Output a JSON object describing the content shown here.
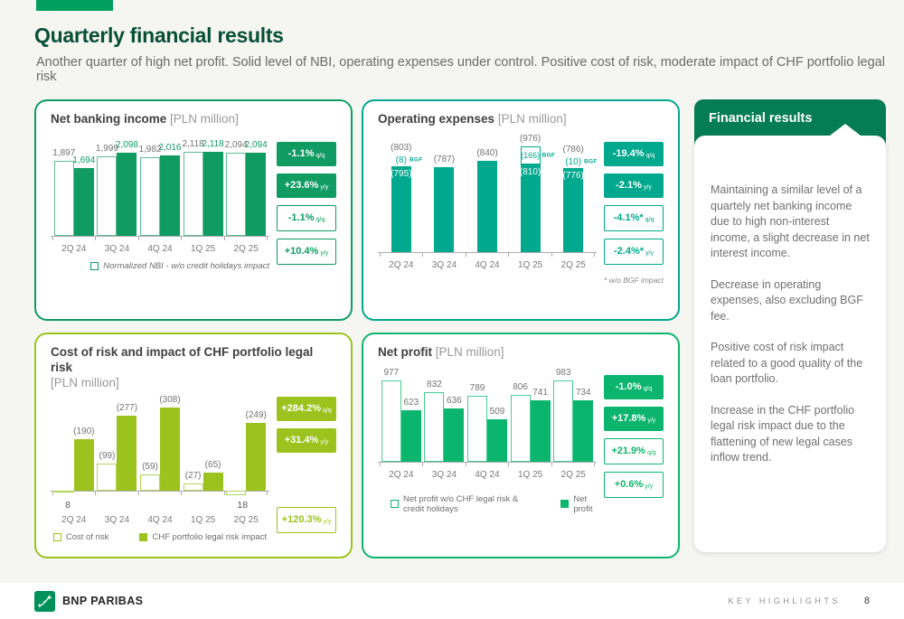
{
  "page": {
    "title": "Quarterly financial results",
    "subtitle": "Another quarter of high net profit. Solid level of NBI, operating expenses under control. Positive cost of risk, moderate impact of CHF portfolio legal risk"
  },
  "colors": {
    "tab_green": "#009F60",
    "title_green": "#084F38",
    "header_green": "#047C54",
    "nbi_accent": "#0F9B61",
    "nbi_light": "#5FBD92",
    "opex_accent": "#00A98E",
    "cor_accent": "#9CC31D",
    "cor_light": "#B5D35C",
    "npr_accent": "#0CB56D",
    "npr_light": "#45CE92",
    "label_gray": "#737373"
  },
  "financial_results": {
    "title": "Financial results",
    "paragraphs": [
      "Maintaining a similar level of a quartely net banking income due to high non-interest income, a slight decrease in net interest income.",
      "Decrease in operating expenses, also excluding BGF fee.",
      "Positive cost of risk impact related to a good quality of the loan portfolio.",
      "Increase in the CHF portfolio legal risk impact due to the flattening of new legal cases inflow trend."
    ]
  },
  "footer": {
    "brand": "BNP PARIBAS",
    "section": "KEY HIGHLIGHTS",
    "page_number": "8"
  },
  "chart_data": [
    {
      "id": "nbi",
      "type": "bar",
      "title": "Net banking income",
      "unit": "[PLN million]",
      "accent": "#0F9B61",
      "accent_light": "#5FBD92",
      "categories": [
        "2Q 24",
        "3Q 24",
        "4Q 24",
        "1Q 25",
        "2Q 25"
      ],
      "series": [
        {
          "name": "Normalized NBI - w/o credit holidays impact",
          "style": "outline",
          "label_color": "#737373",
          "values": [
            1897,
            1999,
            1982,
            2118,
            2094
          ],
          "labels": [
            "1,897",
            "1,999",
            "1,982",
            "2,118",
            "2,094"
          ]
        },
        {
          "name": "Net banking income",
          "style": "solid",
          "label_color": "#0F9B61",
          "values": [
            1694,
            2098,
            2016,
            2118,
            2094
          ],
          "labels": [
            "1,694",
            "2,098",
            "2,016",
            "2,118",
            "2,094"
          ]
        }
      ],
      "ylim": [
        0,
        2200
      ],
      "badges": [
        {
          "text": "-1.1%",
          "suffix": "q/q",
          "variant": "solid"
        },
        {
          "text": "+23.6%",
          "suffix": "y/y",
          "variant": "solid"
        },
        {
          "text": "-1.1%",
          "suffix": "q/q",
          "variant": "outline"
        },
        {
          "text": "+10.4%",
          "suffix": "y/y",
          "variant": "outline"
        }
      ],
      "legend": [
        {
          "label": "Normalized NBI - w/o credit holidays impact",
          "style": "outline"
        }
      ]
    },
    {
      "id": "opex",
      "type": "stacked-bar",
      "title": "Operating expenses",
      "unit": "[PLN million]",
      "accent": "#00A98E",
      "accent_light": "#00A98E",
      "categories": [
        "2Q 24",
        "3Q 24",
        "4Q 24",
        "1Q 25",
        "2Q 25"
      ],
      "bars": [
        {
          "total": 803,
          "total_label": "(803)",
          "bgf": 8,
          "bgf_label": "(8)",
          "bgf_tag": "BGF",
          "bgf_display": "label",
          "main": 795,
          "main_label": "(795)"
        },
        {
          "total": 787,
          "total_label": "(787)",
          "main": 787
        },
        {
          "total": 840,
          "total_label": "(840)",
          "main": 840
        },
        {
          "total": 976,
          "total_label": "(976)",
          "bgf": 166,
          "bgf_label": "(166)",
          "bgf_tag": "BGF",
          "bgf_display": "box",
          "main": 810,
          "main_label": "(810)"
        },
        {
          "total": 786,
          "total_label": "(786)",
          "bgf": 10,
          "bgf_label": "(10)",
          "bgf_tag": "BGF",
          "bgf_display": "label",
          "main": 776,
          "main_label": "(776)"
        }
      ],
      "ylim": [
        0,
        1000
      ],
      "badges": [
        {
          "text": "-19.4%",
          "suffix": "q/q",
          "variant": "solid"
        },
        {
          "text": "-2.1%",
          "suffix": "y/y",
          "variant": "solid"
        },
        {
          "text": "-4.1%*",
          "suffix": "q/q",
          "variant": "outline"
        },
        {
          "text": "-2.4%*",
          "suffix": "y/y",
          "variant": "outline"
        }
      ],
      "footnote": "* w/o BGF impact"
    },
    {
      "id": "cor",
      "type": "bar",
      "title": "Cost of risk and impact of CHF portfolio legal risk",
      "unit": "[PLN million]",
      "accent": "#9CC31D",
      "accent_light": "#B5D35C",
      "inverted": true,
      "categories": [
        "2Q 24",
        "3Q 24",
        "4Q 24",
        "1Q 25",
        "2Q 25"
      ],
      "series": [
        {
          "name": "Cost of risk",
          "style": "outline",
          "label_color": "#737373",
          "values": [
            8,
            -99,
            -59,
            -27,
            18
          ],
          "labels": [
            "8",
            "(99)",
            "(59)",
            "(27)",
            "18"
          ]
        },
        {
          "name": "CHF portfolio legal risk impact",
          "style": "solid",
          "label_color": "#737373",
          "values": [
            -190,
            -277,
            -308,
            -65,
            -249
          ],
          "labels": [
            "(190)",
            "(277)",
            "(308)",
            "(65)",
            "(249)"
          ]
        }
      ],
      "ylim": [
        -320,
        50
      ],
      "badges": [
        {
          "text": "+284.2%",
          "suffix": "q/q",
          "variant": "solid"
        },
        {
          "text": "+31.4%",
          "suffix": "y/y",
          "variant": "solid"
        },
        {
          "text": "+120.3%",
          "suffix": "y/y",
          "variant": "outline",
          "gap_before": true
        }
      ],
      "legend": [
        {
          "label": "Cost of risk",
          "style": "outline"
        },
        {
          "label": "CHF portfolio legal risk impact",
          "style": "solid"
        }
      ]
    },
    {
      "id": "npr",
      "type": "bar",
      "title": "Net profit",
      "unit": "[PLN million]",
      "accent": "#0CB56D",
      "accent_light": "#45CE92",
      "categories": [
        "2Q 24",
        "3Q 24",
        "4Q 24",
        "1Q 25",
        "2Q 25"
      ],
      "series": [
        {
          "name": "Net profit w/o CHF legal risk & credit holidays",
          "style": "outline",
          "label_color": "#737373",
          "values": [
            977,
            832,
            789,
            806,
            983
          ],
          "labels": [
            "977",
            "832",
            "789",
            "806",
            "983"
          ]
        },
        {
          "name": "Net profit",
          "style": "solid",
          "label_color": "#737373",
          "values": [
            623,
            636,
            509,
            741,
            734
          ],
          "labels": [
            "623",
            "636",
            "509",
            "741",
            "734"
          ]
        }
      ],
      "ylim": [
        0,
        1050
      ],
      "badges": [
        {
          "text": "-1.0%",
          "suffix": "q/q",
          "variant": "solid"
        },
        {
          "text": "+17.8%",
          "suffix": "y/y",
          "variant": "solid"
        },
        {
          "text": "+21.9%",
          "suffix": "q/q",
          "variant": "outline"
        },
        {
          "text": "+0.6%",
          "suffix": "y/y",
          "variant": "outline"
        }
      ],
      "legend": [
        {
          "label": "Net profit w/o CHF legal risk & credit holidays",
          "style": "outline"
        },
        {
          "label": "Net profit",
          "style": "solid"
        }
      ]
    }
  ]
}
